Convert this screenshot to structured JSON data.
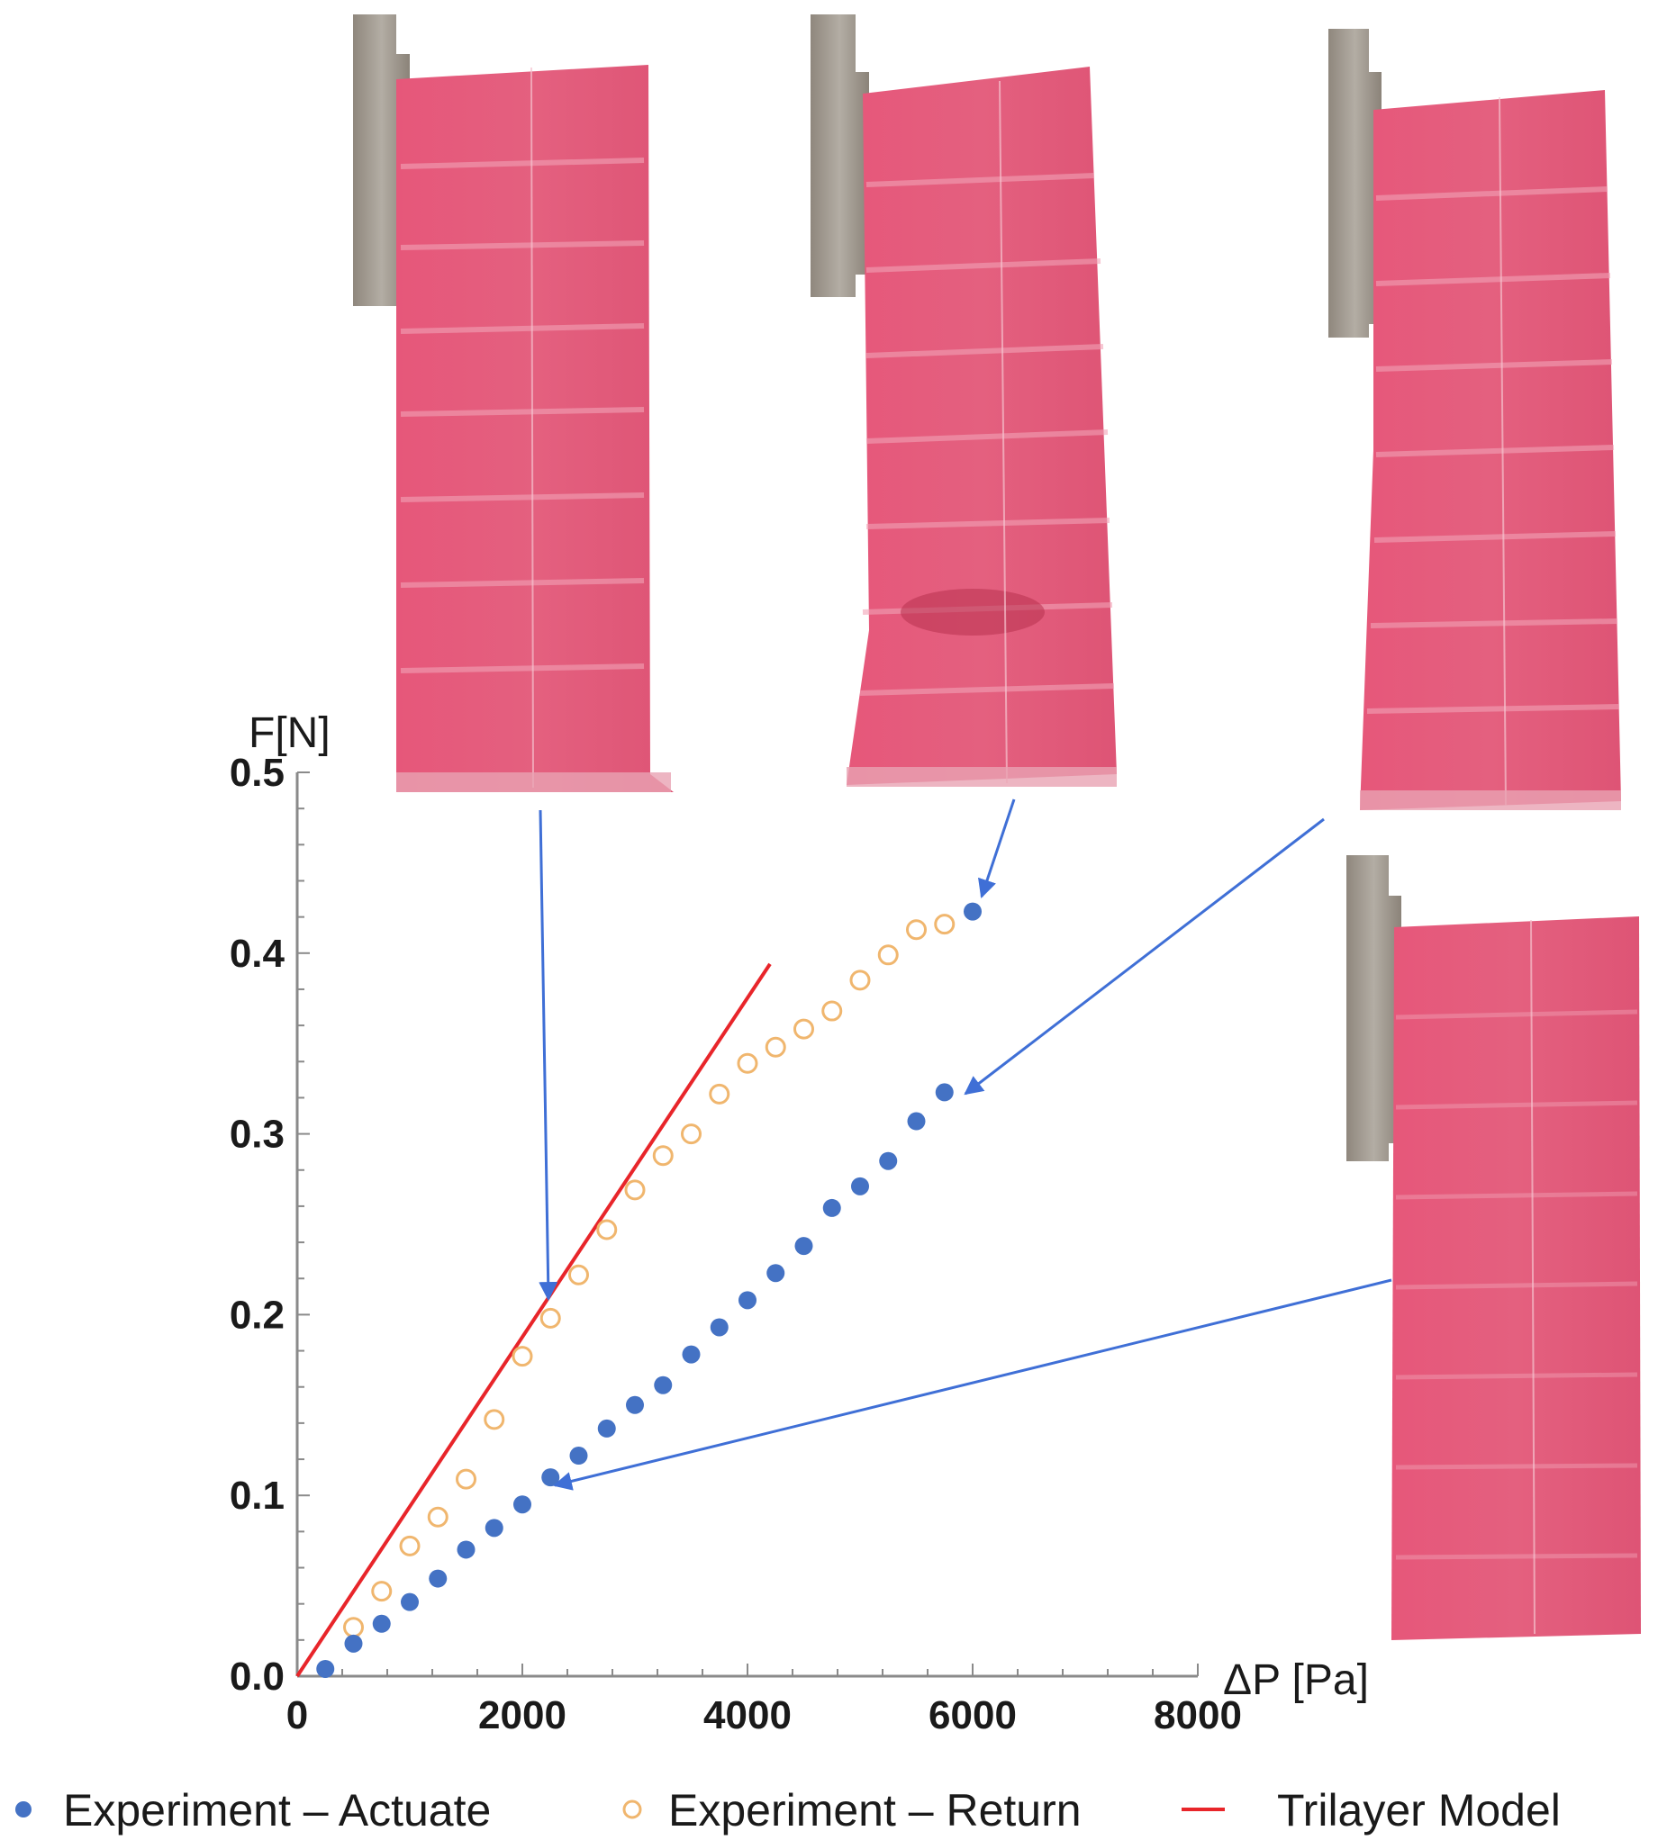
{
  "chart_data": {
    "type": "scatter",
    "xlabel": "ΔP [Pa]",
    "ylabel": "F[N]",
    "xlim": [
      0,
      8000
    ],
    "ylim": [
      0,
      0.5
    ],
    "x_ticks": [
      "0",
      "2000",
      "4000",
      "6000",
      "8000"
    ],
    "y_ticks": [
      "0.0",
      "0.1",
      "0.2",
      "0.3",
      "0.4",
      "0.5"
    ],
    "grid": false,
    "legend_position": "bottom",
    "series": [
      {
        "name": "Experiment – Actuate",
        "marker": "filled-circle",
        "color": "#4472c4",
        "x": [
          250,
          500,
          750,
          1000,
          1250,
          1500,
          1750,
          2000,
          2250,
          2500,
          2750,
          3000,
          3250,
          3500,
          3750,
          4000,
          4250,
          4500,
          4750,
          5000,
          5250,
          5500,
          5750,
          6000
        ],
        "y": [
          0.004,
          0.018,
          0.029,
          0.041,
          0.054,
          0.07,
          0.082,
          0.095,
          0.11,
          0.122,
          0.137,
          0.15,
          0.161,
          0.178,
          0.193,
          0.208,
          0.223,
          0.238,
          0.259,
          0.271,
          0.285,
          0.307,
          0.323,
          0.423
        ]
      },
      {
        "name": "Experiment – Return",
        "marker": "open-circle",
        "color": "#f0b66e",
        "x": [
          500,
          750,
          1000,
          1250,
          1500,
          1750,
          2000,
          2250,
          2500,
          2750,
          3000,
          3250,
          3500,
          3750,
          4000,
          4250,
          4500,
          4750,
          5000,
          5250,
          5500,
          5750
        ],
        "y": [
          0.027,
          0.047,
          0.072,
          0.088,
          0.109,
          0.142,
          0.177,
          0.198,
          0.222,
          0.247,
          0.269,
          0.288,
          0.3,
          0.322,
          0.339,
          0.348,
          0.358,
          0.368,
          0.385,
          0.399,
          0.413,
          0.416
        ]
      },
      {
        "name": "Trilayer Model",
        "marker": "line",
        "color": "#e8252a",
        "x": [
          0,
          4200
        ],
        "y": [
          0.0,
          0.394
        ]
      }
    ],
    "annotations": {
      "photos": [
        {
          "label": "photo-1",
          "points_to": [
            2200,
            0.208
          ]
        },
        {
          "label": "photo-2",
          "points_to": [
            6000,
            0.423
          ]
        },
        {
          "label": "photo-3",
          "points_to": [
            5750,
            0.323
          ]
        },
        {
          "label": "photo-4",
          "points_to": [
            2250,
            0.11
          ]
        }
      ],
      "arrow_color": "#3f6fd6",
      "sample_color": "#e15a77",
      "clamp_color": "#a69f95"
    }
  }
}
